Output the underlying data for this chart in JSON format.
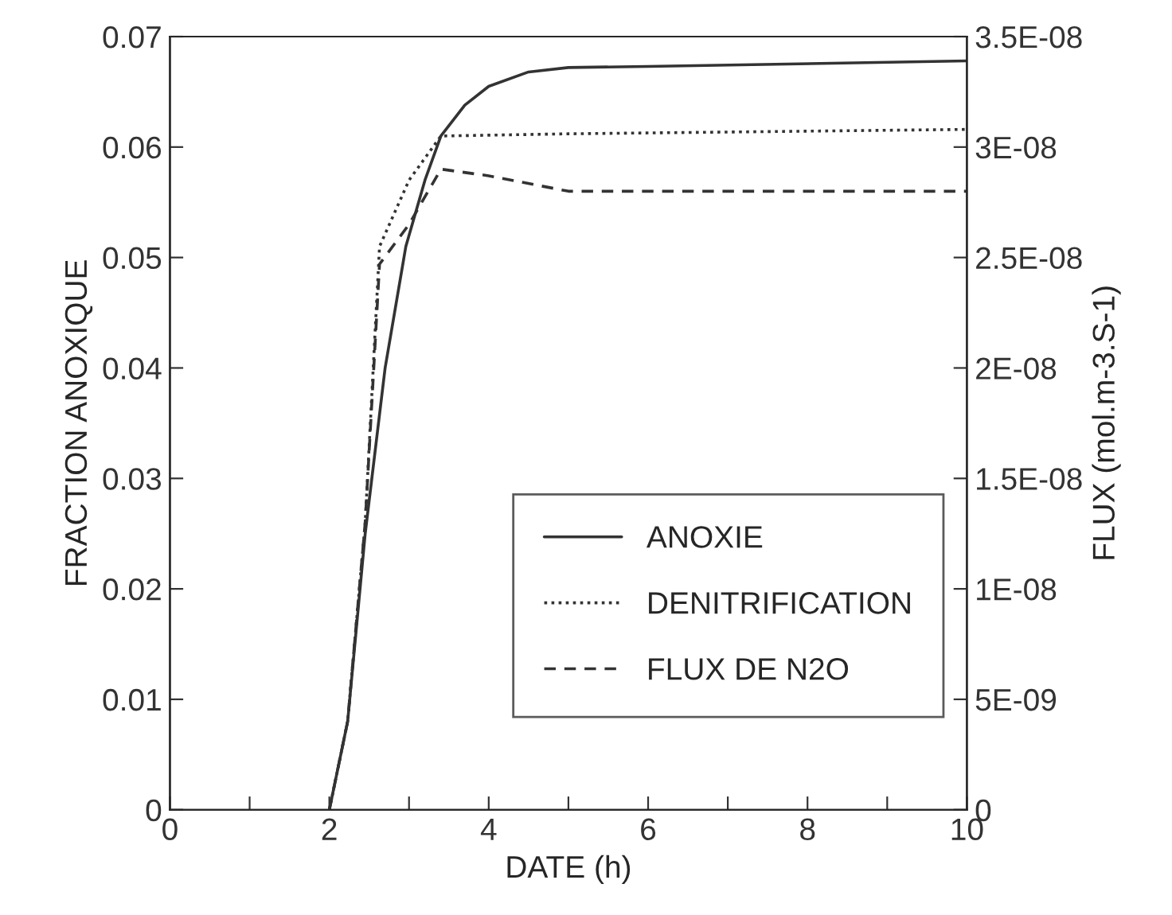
{
  "chart_data": {
    "type": "line",
    "xlabel": "DATE (h)",
    "ylabel": "FRACTION ANOXIQUE",
    "y2label": "FLUX (mol.m-3.S-1)",
    "xlim": [
      0,
      10
    ],
    "xticks": [
      0,
      {
        "value": 1,
        "label": null
      },
      2,
      {
        "value": 3,
        "label": null
      },
      4,
      {
        "value": 5,
        "label": null
      },
      6,
      {
        "value": 7,
        "label": null
      },
      8,
      {
        "value": 9,
        "label": null
      },
      10
    ],
    "ylim": [
      0,
      0.07
    ],
    "yticks": [
      0,
      0.01,
      0.02,
      0.03,
      0.04,
      0.05,
      0.06,
      0.07
    ],
    "y2lim": [
      0,
      3.5e-08
    ],
    "y2ticks": [
      {
        "value": 0,
        "label": "0"
      },
      {
        "value": 5e-09,
        "label": "5E-09"
      },
      {
        "value": 1e-08,
        "label": "1E-08"
      },
      {
        "value": 1.5e-08,
        "label": "1.5E-08"
      },
      {
        "value": 2e-08,
        "label": "2E-08"
      },
      {
        "value": 2.5e-08,
        "label": "2.5E-08"
      },
      {
        "value": 3e-08,
        "label": "3E-08"
      },
      {
        "value": 3.5e-08,
        "label": "3.5E-08"
      }
    ],
    "legend": "bottom right",
    "grid": false,
    "series": [
      {
        "name": "ANOXIE",
        "color": "#333333",
        "line_style": "solid",
        "x": [
          2,
          2.23,
          2.45,
          2.7,
          2.96,
          3.2,
          3.4,
          3.7,
          4.0,
          4.5,
          5,
          6,
          10
        ],
        "values": [
          0,
          0.008,
          0.025,
          0.04,
          0.051,
          0.057,
          0.061,
          0.0638,
          0.0655,
          0.0668,
          0.0672,
          0.0673,
          0.0678
        ]
      },
      {
        "name": "DENITRIFICATION",
        "color": "#333333",
        "line_style": "dotted",
        "axis": "y2",
        "x": [
          2,
          2.23,
          2.45,
          2.63,
          3.0,
          3.4,
          5,
          10
        ],
        "values": [
          0,
          4e-09,
          1.3e-08,
          2.55e-08,
          2.85e-08,
          3.05e-08,
          3.06e-08,
          3.08e-08
        ]
      },
      {
        "name": "FLUX DE N2O",
        "color": "#333333",
        "line_style": "dashed",
        "axis": "y2",
        "x": [
          2,
          2.23,
          2.45,
          2.63,
          3.0,
          3.4,
          4,
          5,
          6,
          10
        ],
        "values": [
          0,
          4e-09,
          1.3e-08,
          2.47e-08,
          2.65e-08,
          2.9e-08,
          2.87e-08,
          2.8e-08,
          2.8e-08,
          2.8e-08
        ]
      }
    ]
  }
}
